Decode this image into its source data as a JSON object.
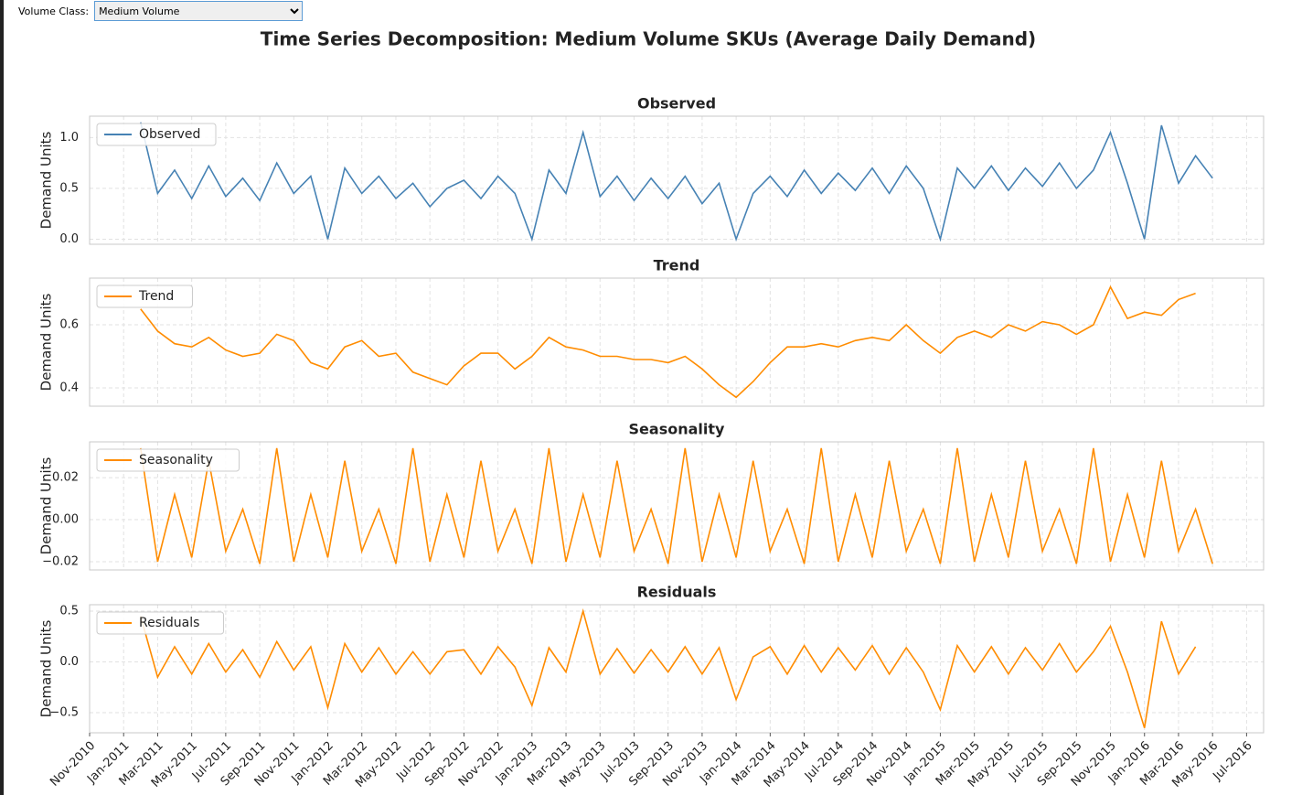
{
  "control": {
    "label": "Volume Class:",
    "value": "Medium Volume"
  },
  "figure_title": "Time Series Decomposition: Medium Volume SKUs (Average Daily Demand)",
  "chart_data": [
    {
      "type": "line",
      "title": "Observed",
      "y_label": "Demand Units",
      "legend": "upper left",
      "grid": true,
      "x": [
        "2011-02",
        "2011-03",
        "2011-04",
        "2011-05",
        "2011-06",
        "2011-07",
        "2011-08",
        "2011-09",
        "2011-10",
        "2011-11",
        "2011-12",
        "2012-01",
        "2012-02",
        "2012-03",
        "2012-04",
        "2012-05",
        "2012-06",
        "2012-07",
        "2012-08",
        "2012-09",
        "2012-10",
        "2012-11",
        "2012-12",
        "2013-01",
        "2013-02",
        "2013-03",
        "2013-04",
        "2013-05",
        "2013-06",
        "2013-07",
        "2013-08",
        "2013-09",
        "2013-10",
        "2013-11",
        "2013-12",
        "2014-01",
        "2014-02",
        "2014-03",
        "2014-04",
        "2014-05",
        "2014-06",
        "2014-07",
        "2014-08",
        "2014-09",
        "2014-10",
        "2014-11",
        "2014-12",
        "2015-01",
        "2015-02",
        "2015-03",
        "2015-04",
        "2015-05",
        "2015-06",
        "2015-07",
        "2015-08",
        "2015-09",
        "2015-10",
        "2015-11",
        "2015-12",
        "2016-01",
        "2016-02",
        "2016-03",
        "2016-04",
        "2016-05"
      ],
      "xlim": [
        "2010-11",
        "2016-08"
      ],
      "ylim": [
        -0.05,
        1.21
      ],
      "yticks": [
        {
          "value": 0,
          "label": "0.0"
        },
        0.5,
        {
          "value": 1,
          "label": "1.0"
        }
      ],
      "series": [
        {
          "name": "Observed",
          "color": "#4682b4",
          "values": [
            1.15,
            0.45,
            0.68,
            0.4,
            0.72,
            0.42,
            0.6,
            0.38,
            0.75,
            0.45,
            0.62,
            0.0,
            0.7,
            0.45,
            0.62,
            0.4,
            0.55,
            0.32,
            0.5,
            0.58,
            0.4,
            0.62,
            0.45,
            0.0,
            0.68,
            0.45,
            1.05,
            0.42,
            0.62,
            0.38,
            0.6,
            0.4,
            0.62,
            0.35,
            0.55,
            0.0,
            0.45,
            0.62,
            0.42,
            0.68,
            0.45,
            0.65,
            0.48,
            0.7,
            0.45,
            0.72,
            0.5,
            0.0,
            0.7,
            0.5,
            0.72,
            0.48,
            0.7,
            0.52,
            0.75,
            0.5,
            0.68,
            1.05,
            0.55,
            0.0,
            1.12,
            0.55,
            0.82,
            0.6
          ]
        }
      ]
    },
    {
      "type": "line",
      "title": "Trend",
      "y_label": "Demand Units",
      "legend": "upper left",
      "grid": true,
      "x": [
        "2011-02",
        "2011-03",
        "2011-04",
        "2011-05",
        "2011-06",
        "2011-07",
        "2011-08",
        "2011-09",
        "2011-10",
        "2011-11",
        "2011-12",
        "2012-01",
        "2012-02",
        "2012-03",
        "2012-04",
        "2012-05",
        "2012-06",
        "2012-07",
        "2012-08",
        "2012-09",
        "2012-10",
        "2012-11",
        "2012-12",
        "2013-01",
        "2013-02",
        "2013-03",
        "2013-04",
        "2013-05",
        "2013-06",
        "2013-07",
        "2013-08",
        "2013-09",
        "2013-10",
        "2013-11",
        "2013-12",
        "2014-01",
        "2014-02",
        "2014-03",
        "2014-04",
        "2014-05",
        "2014-06",
        "2014-07",
        "2014-08",
        "2014-09",
        "2014-10",
        "2014-11",
        "2014-12",
        "2015-01",
        "2015-02",
        "2015-03",
        "2015-04",
        "2015-05",
        "2015-06",
        "2015-07",
        "2015-08",
        "2015-09",
        "2015-10",
        "2015-11",
        "2015-12",
        "2016-01",
        "2016-02",
        "2016-03",
        "2016-04",
        "2016-05"
      ],
      "xlim": [
        "2010-11",
        "2016-08"
      ],
      "ylim": [
        0.342,
        0.748
      ],
      "yticks": [
        0.4,
        0.6
      ],
      "series": [
        {
          "name": "Trend",
          "color": "#ff8c00",
          "values": [
            0.65,
            0.58,
            0.54,
            0.53,
            0.56,
            0.52,
            0.5,
            0.51,
            0.57,
            0.55,
            0.48,
            0.46,
            0.53,
            0.55,
            0.5,
            0.51,
            0.45,
            0.43,
            0.41,
            0.47,
            0.51,
            0.51,
            0.46,
            0.5,
            0.56,
            0.53,
            0.52,
            0.5,
            0.5,
            0.49,
            0.49,
            0.48,
            0.5,
            0.46,
            0.41,
            0.37,
            0.42,
            0.48,
            0.53,
            0.53,
            0.54,
            0.53,
            0.55,
            0.56,
            0.55,
            0.6,
            0.55,
            0.51,
            0.56,
            0.58,
            0.56,
            0.6,
            0.58,
            0.61,
            0.6,
            0.57,
            0.6,
            0.72,
            0.62,
            0.64,
            0.63,
            0.68,
            0.7,
            null
          ]
        }
      ]
    },
    {
      "type": "line",
      "title": "Seasonality",
      "y_label": "Demand Units",
      "legend": "upper left",
      "grid": true,
      "x": [
        "2011-02",
        "2011-03",
        "2011-04",
        "2011-05",
        "2011-06",
        "2011-07",
        "2011-08",
        "2011-09",
        "2011-10",
        "2011-11",
        "2011-12",
        "2012-01",
        "2012-02",
        "2012-03",
        "2012-04",
        "2012-05",
        "2012-06",
        "2012-07",
        "2012-08",
        "2012-09",
        "2012-10",
        "2012-11",
        "2012-12",
        "2013-01",
        "2013-02",
        "2013-03",
        "2013-04",
        "2013-05",
        "2013-06",
        "2013-07",
        "2013-08",
        "2013-09",
        "2013-10",
        "2013-11",
        "2013-12",
        "2014-01",
        "2014-02",
        "2014-03",
        "2014-04",
        "2014-05",
        "2014-06",
        "2014-07",
        "2014-08",
        "2014-09",
        "2014-10",
        "2014-11",
        "2014-12",
        "2015-01",
        "2015-02",
        "2015-03",
        "2015-04",
        "2015-05",
        "2015-06",
        "2015-07",
        "2015-08",
        "2015-09",
        "2015-10",
        "2015-11",
        "2015-12",
        "2016-01",
        "2016-02",
        "2016-03",
        "2016-04",
        "2016-05"
      ],
      "xlim": [
        "2010-11",
        "2016-08"
      ],
      "ylim": [
        -0.0239,
        0.037
      ],
      "yticks": [
        {
          "value": -0.02,
          "label": "−0.02"
        },
        {
          "value": 0,
          "label": "0.00"
        },
        0.02
      ],
      "series": [
        {
          "name": "Seasonality",
          "color": "#ff8c00",
          "values": [
            0.034,
            -0.02,
            0.012,
            -0.018,
            0.028,
            -0.015,
            0.005,
            -0.021,
            0.034,
            -0.02,
            0.012,
            -0.018,
            0.028,
            -0.015,
            0.005,
            -0.021,
            0.034,
            -0.02,
            0.012,
            -0.018,
            0.028,
            -0.015,
            0.005,
            -0.021,
            0.034,
            -0.02,
            0.012,
            -0.018,
            0.028,
            -0.015,
            0.005,
            -0.021,
            0.034,
            -0.02,
            0.012,
            -0.018,
            0.028,
            -0.015,
            0.005,
            -0.021,
            0.034,
            -0.02,
            0.012,
            -0.018,
            0.028,
            -0.015,
            0.005,
            -0.021,
            0.034,
            -0.02,
            0.012,
            -0.018,
            0.028,
            -0.015,
            0.005,
            -0.021,
            0.034,
            -0.02,
            0.012,
            -0.018,
            0.028,
            -0.015,
            0.005,
            -0.021
          ]
        }
      ]
    },
    {
      "type": "line",
      "title": "Residuals",
      "y_label": "Demand Units",
      "legend": "upper left",
      "grid": true,
      "x": [
        "2011-02",
        "2011-03",
        "2011-04",
        "2011-05",
        "2011-06",
        "2011-07",
        "2011-08",
        "2011-09",
        "2011-10",
        "2011-11",
        "2011-12",
        "2012-01",
        "2012-02",
        "2012-03",
        "2012-04",
        "2012-05",
        "2012-06",
        "2012-07",
        "2012-08",
        "2012-09",
        "2012-10",
        "2012-11",
        "2012-12",
        "2013-01",
        "2013-02",
        "2013-03",
        "2013-04",
        "2013-05",
        "2013-06",
        "2013-07",
        "2013-08",
        "2013-09",
        "2013-10",
        "2013-11",
        "2013-12",
        "2014-01",
        "2014-02",
        "2014-03",
        "2014-04",
        "2014-05",
        "2014-06",
        "2014-07",
        "2014-08",
        "2014-09",
        "2014-10",
        "2014-11",
        "2014-12",
        "2015-01",
        "2015-02",
        "2015-03",
        "2015-04",
        "2015-05",
        "2015-06",
        "2015-07",
        "2015-08",
        "2015-09",
        "2015-10",
        "2015-11",
        "2015-12",
        "2016-01",
        "2016-02",
        "2016-03",
        "2016-04",
        "2016-05"
      ],
      "xlim": [
        "2010-11",
        "2016-08"
      ],
      "xticks": [
        {
          "value": "2010-11",
          "label": "Nov-2010"
        },
        {
          "value": "2011-01",
          "label": "Jan-2011"
        },
        {
          "value": "2011-03",
          "label": "Mar-2011"
        },
        {
          "value": "2011-05",
          "label": "May-2011"
        },
        {
          "value": "2011-07",
          "label": "Jul-2011"
        },
        {
          "value": "2011-09",
          "label": "Sep-2011"
        },
        {
          "value": "2011-11",
          "label": "Nov-2011"
        },
        {
          "value": "2012-01",
          "label": "Jan-2012"
        },
        {
          "value": "2012-03",
          "label": "Mar-2012"
        },
        {
          "value": "2012-05",
          "label": "May-2012"
        },
        {
          "value": "2012-07",
          "label": "Jul-2012"
        },
        {
          "value": "2012-09",
          "label": "Sep-2012"
        },
        {
          "value": "2012-11",
          "label": "Nov-2012"
        },
        {
          "value": "2013-01",
          "label": "Jan-2013"
        },
        {
          "value": "2013-03",
          "label": "Mar-2013"
        },
        {
          "value": "2013-05",
          "label": "May-2013"
        },
        {
          "value": "2013-07",
          "label": "Jul-2013"
        },
        {
          "value": "2013-09",
          "label": "Sep-2013"
        },
        {
          "value": "2013-11",
          "label": "Nov-2013"
        },
        {
          "value": "2014-01",
          "label": "Jan-2014"
        },
        {
          "value": "2014-03",
          "label": "Mar-2014"
        },
        {
          "value": "2014-05",
          "label": "May-2014"
        },
        {
          "value": "2014-07",
          "label": "Jul-2014"
        },
        {
          "value": "2014-09",
          "label": "Sep-2014"
        },
        {
          "value": "2014-11",
          "label": "Nov-2014"
        },
        {
          "value": "2015-01",
          "label": "Jan-2015"
        },
        {
          "value": "2015-03",
          "label": "Mar-2015"
        },
        {
          "value": "2015-05",
          "label": "May-2015"
        },
        {
          "value": "2015-07",
          "label": "Jul-2015"
        },
        {
          "value": "2015-09",
          "label": "Sep-2015"
        },
        {
          "value": "2015-11",
          "label": "Nov-2015"
        },
        {
          "value": "2016-01",
          "label": "Jan-2016"
        },
        {
          "value": "2016-03",
          "label": "Mar-2016"
        },
        {
          "value": "2016-05",
          "label": "May-2016"
        },
        {
          "value": "2016-07",
          "label": "Jul-2016"
        }
      ],
      "ylim": [
        -0.698,
        0.563
      ],
      "yticks": [
        {
          "value": -0.5,
          "label": "−0.5"
        },
        {
          "value": 0,
          "label": "0.0"
        },
        0.5
      ],
      "series": [
        {
          "name": "Residuals",
          "color": "#ff8c00",
          "values": [
            0.45,
            -0.15,
            0.15,
            -0.12,
            0.18,
            -0.1,
            0.12,
            -0.15,
            0.2,
            -0.08,
            0.15,
            -0.45,
            0.18,
            -0.1,
            0.14,
            -0.12,
            0.1,
            -0.12,
            0.1,
            0.12,
            -0.12,
            0.15,
            -0.05,
            -0.43,
            0.14,
            -0.1,
            0.5,
            -0.12,
            0.13,
            -0.11,
            0.12,
            -0.1,
            0.15,
            -0.12,
            0.14,
            -0.37,
            0.05,
            0.15,
            -0.12,
            0.16,
            -0.1,
            0.14,
            -0.08,
            0.16,
            -0.12,
            0.14,
            -0.1,
            -0.47,
            0.16,
            -0.1,
            0.15,
            -0.12,
            0.14,
            -0.08,
            0.18,
            -0.1,
            0.1,
            0.35,
            -0.1,
            -0.65,
            0.4,
            -0.12,
            0.15,
            null
          ]
        }
      ]
    }
  ]
}
